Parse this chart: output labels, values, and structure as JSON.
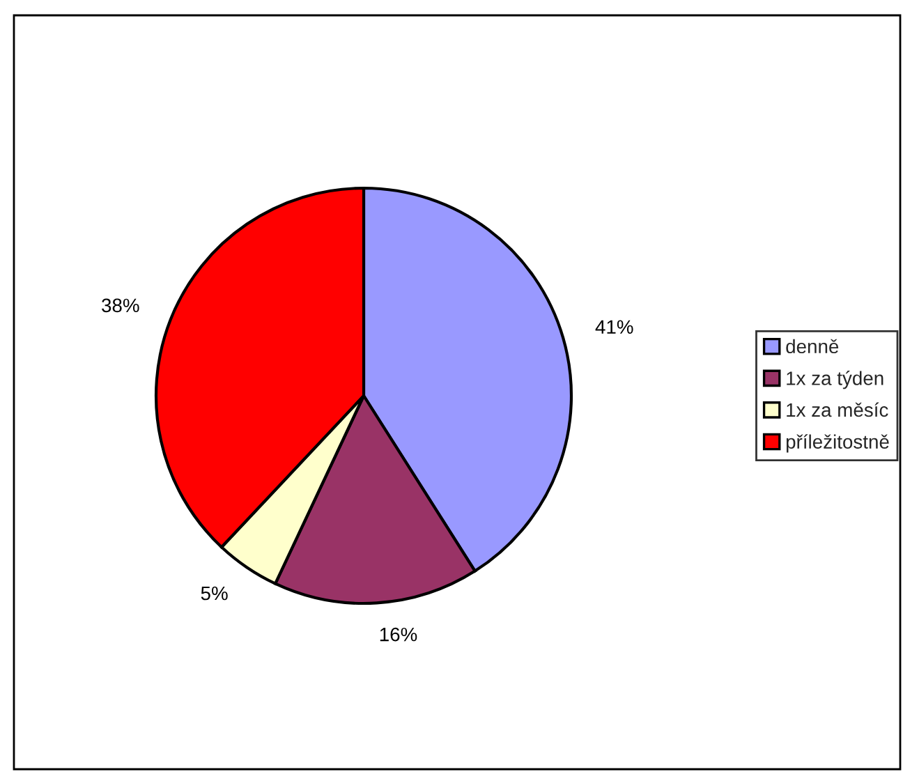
{
  "chart_data": {
    "type": "pie",
    "categories": [
      "denně",
      "1x za týden",
      "1x za měsíc",
      "příležitostně"
    ],
    "values": [
      41,
      16,
      5,
      38
    ],
    "colors": [
      "#9999ff",
      "#993366",
      "#ffffcc",
      "#ff0000"
    ],
    "value_labels": [
      "41%",
      "16%",
      "5%",
      "38%"
    ],
    "legend": "right"
  }
}
